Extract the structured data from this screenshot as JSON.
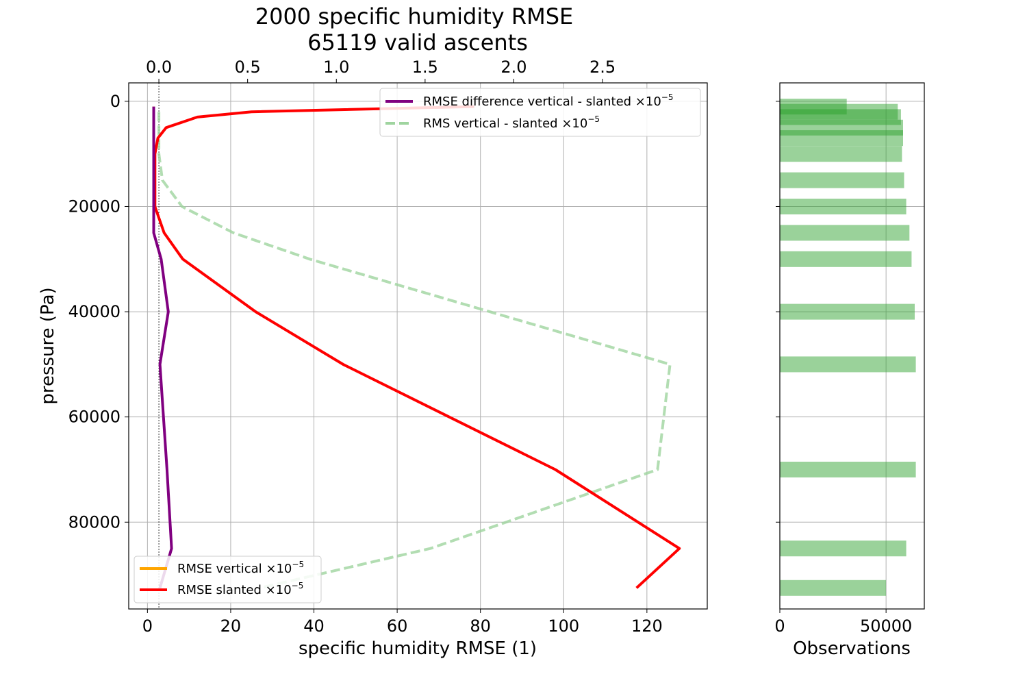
{
  "chart_data": [
    {
      "type": "line",
      "title": "2000 specific humidity RMSE",
      "subtitle": "65119 valid ascents",
      "xlabel": "specific humidity RMSE (1)",
      "ylabel": "pressure (Pa)",
      "xlim": [
        -4.5,
        134.5
      ],
      "ylim": [
        96500,
        -3500
      ],
      "y_inverted": true,
      "grid": true,
      "x_ticks": [
        "0",
        "20",
        "40",
        "60",
        "80",
        "100",
        "120"
      ],
      "y_ticks": [
        "0",
        "20000",
        "40000",
        "60000",
        "80000"
      ],
      "top_axis": {
        "xlim": [
          -0.17,
          3.09
        ],
        "ticks": [
          "0.0",
          "0.5",
          "1.0",
          "1.5",
          "2.0",
          "2.5"
        ],
        "reference_line_x": 0.0
      },
      "legends": [
        {
          "position": "upper right",
          "entries": [
            {
              "label": "RMSE difference vertical - slanted ×10",
              "exponent": "−5",
              "color": "#800080",
              "style": "solid"
            },
            {
              "label": "RMS vertical - slanted ×10",
              "exponent": "−5",
              "color": "#9fd49f",
              "style": "dashed"
            }
          ]
        },
        {
          "position": "lower left",
          "entries": [
            {
              "label": "RMSE vertical ×10",
              "exponent": "−5",
              "color": "#ffa500",
              "style": "solid"
            },
            {
              "label": "RMSE slanted ×10",
              "exponent": "−5",
              "color": "#ff0000",
              "style": "solid"
            }
          ]
        }
      ],
      "series": [
        {
          "name": "RMSE vertical ×10−5",
          "color": "#ffa500",
          "style": "solid",
          "x": [
            1.5,
            1.5,
            1.5,
            1.5,
            1.5,
            1.5
          ],
          "y": [
            1000,
            3000,
            5000,
            10000,
            15000,
            20000
          ]
        },
        {
          "name": "RMSE slanted ×10−5",
          "color": "#ff0000",
          "style": "solid",
          "x": [
            78.5,
            25,
            12,
            4.5,
            2.5,
            1.8,
            1.8,
            1.8,
            1.8,
            4,
            8.5,
            26,
            47,
            98,
            127.8,
            117.5
          ],
          "y": [
            1000,
            2000,
            3000,
            5000,
            7000,
            10000,
            15000,
            20000,
            20000,
            25000,
            30000,
            40000,
            50000,
            70000,
            85000,
            92500
          ]
        },
        {
          "name": "RMSE difference vertical - slanted ×10−5",
          "color": "#800080",
          "style": "solid",
          "x": [
            1.5,
            1.5,
            1.5,
            1.5,
            1.5,
            1.5,
            1.5,
            3.3,
            5,
            3,
            4.7,
            5.8,
            3
          ],
          "y": [
            1000,
            2000,
            5000,
            10000,
            15000,
            20000,
            25000,
            30000,
            40000,
            50000,
            70000,
            85000,
            92500
          ]
        },
        {
          "name": "RMS vertical - slanted ×10−5",
          "color": "#9fd49f",
          "style": "dashed",
          "axis": "top",
          "x": [
            0.0,
            0.0,
            0.02,
            0.13,
            0.42,
            0.85,
            2.88,
            2.81,
            1.53,
            0.57
          ],
          "y": [
            2000,
            10000,
            15000,
            20000,
            25000,
            30000,
            50000,
            70000,
            85000,
            92500
          ]
        }
      ]
    },
    {
      "type": "bar",
      "orientation": "horizontal",
      "xlabel": "Observations",
      "xlim": [
        0,
        68000
      ],
      "x_ticks": [
        "0",
        "50000"
      ],
      "ylim": [
        96500,
        -3500
      ],
      "grid": true,
      "color": "#2ca02c",
      "bars": [
        {
          "level": 1000,
          "value": 31500
        },
        {
          "level": 2000,
          "value": 55500
        },
        {
          "level": 3000,
          "value": 57000
        },
        {
          "level": 5000,
          "value": 58000
        },
        {
          "level": 7000,
          "value": 58000
        },
        {
          "level": 10000,
          "value": 57500
        },
        {
          "level": 15000,
          "value": 58500
        },
        {
          "level": 20000,
          "value": 59500
        },
        {
          "level": 25000,
          "value": 61000
        },
        {
          "level": 30000,
          "value": 62000
        },
        {
          "level": 40000,
          "value": 63500
        },
        {
          "level": 50000,
          "value": 64000
        },
        {
          "level": 70000,
          "value": 64000
        },
        {
          "level": 85000,
          "value": 59500
        },
        {
          "level": 92500,
          "value": 50000
        }
      ]
    }
  ]
}
